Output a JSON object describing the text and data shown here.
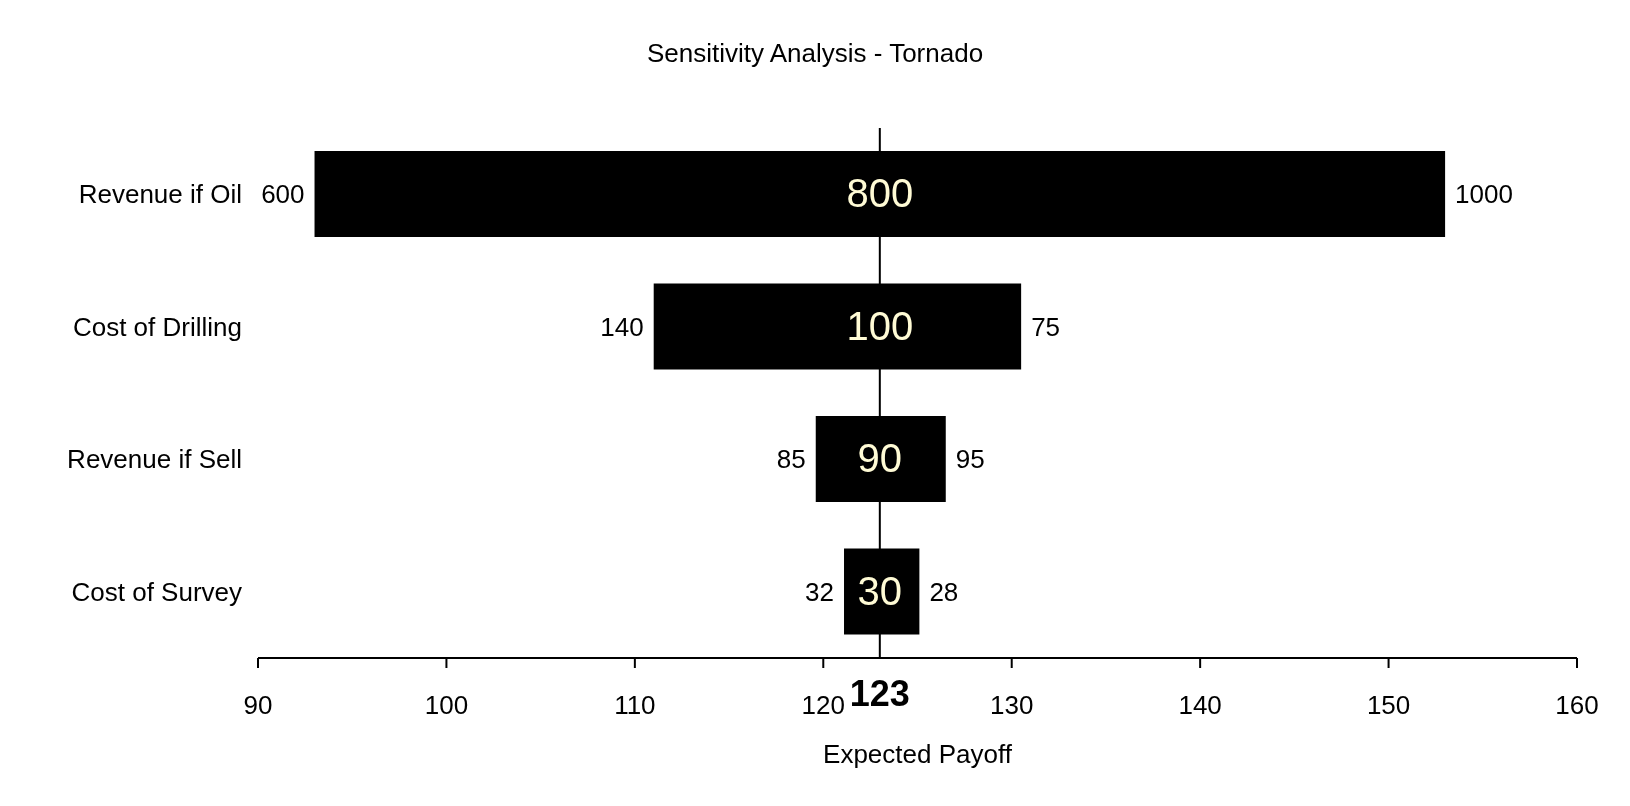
{
  "chart_data": {
    "type": "bar",
    "orientation": "horizontal",
    "title": "Sensitivity Analysis - Tornado",
    "xlabel": "Expected Payoff",
    "categories": [
      "Revenue if Oil",
      "Cost of Drilling",
      "Revenue if Sell",
      "Cost of Survey"
    ],
    "base": [
      93,
      111,
      119.6,
      121.1
    ],
    "values": [
      60,
      19.5,
      6.9,
      4
    ],
    "color": "#000000",
    "xlim": [
      90,
      160
    ],
    "xticks": [
      90,
      100,
      110,
      120,
      130,
      140,
      150,
      160
    ],
    "grid": false,
    "legend": false,
    "ref_lines": [
      {
        "axis": "x",
        "value": 123,
        "label": "123",
        "color": "#000000"
      }
    ],
    "annotations": [
      {
        "text": "600",
        "x": 93,
        "y": "Revenue if Oil"
      },
      {
        "text": "800",
        "x": 123,
        "y": "Revenue if Oil"
      },
      {
        "text": "1000",
        "x": 153,
        "y": "Revenue if Oil"
      },
      {
        "text": "140",
        "x": 111,
        "y": "Cost of Drilling"
      },
      {
        "text": "100",
        "x": 123,
        "y": "Cost of Drilling"
      },
      {
        "text": "75",
        "x": 130.5,
        "y": "Cost of Drilling"
      },
      {
        "text": "85",
        "x": 119.6,
        "y": "Revenue if Sell"
      },
      {
        "text": "90",
        "x": 123,
        "y": "Revenue if Sell"
      },
      {
        "text": "95",
        "x": 126.5,
        "y": "Revenue if Sell"
      },
      {
        "text": "32",
        "x": 121.1,
        "y": "Cost of Survey"
      },
      {
        "text": "30",
        "x": 123,
        "y": "Cost of Survey"
      },
      {
        "text": "28",
        "x": 125.1,
        "y": "Cost of Survey"
      }
    ]
  }
}
